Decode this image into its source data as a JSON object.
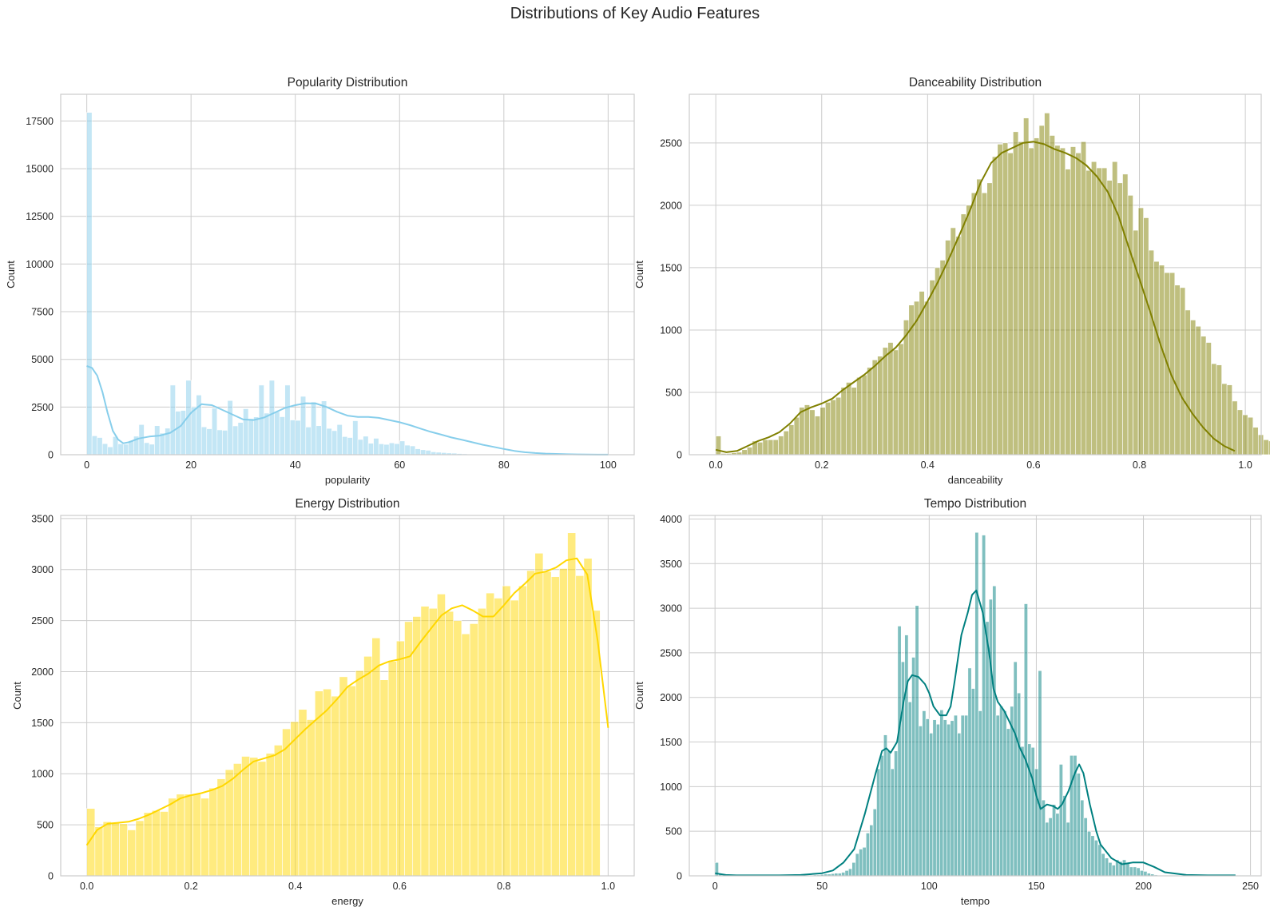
{
  "figure": {
    "suptitle": "Distributions of Key Audio Features"
  },
  "chart_data": [
    {
      "type": "histogram",
      "title": "Popularity Distribution",
      "xlabel": "popularity",
      "ylabel": "Count",
      "color": "#87ceeb",
      "kde": true,
      "grid": true,
      "xlim": [
        -5,
        105
      ],
      "ylim": [
        0,
        18900
      ],
      "xticks": [
        0,
        20,
        40,
        60,
        80,
        100
      ],
      "yticks": [
        0,
        2500,
        5000,
        7500,
        10000,
        12500,
        15000,
        17500
      ],
      "bin_width": 1.0,
      "bin_start": 0,
      "counts": [
        17950,
        990,
        900,
        580,
        410,
        950,
        570,
        550,
        730,
        970,
        1580,
        630,
        550,
        1520,
        1130,
        1390,
        3650,
        2280,
        2320,
        3900,
        2500,
        3130,
        1460,
        1360,
        2440,
        1300,
        1280,
        2840,
        1510,
        1690,
        2410,
        1890,
        1980,
        3650,
        2180,
        3900,
        2250,
        1990,
        3650,
        1820,
        1800,
        3060,
        1450,
        2770,
        1520,
        2820,
        1380,
        1260,
        1580,
        950,
        900,
        1780,
        800,
        970,
        600,
        860,
        570,
        540,
        620,
        580,
        720,
        500,
        460,
        310,
        260,
        230,
        150,
        130,
        110,
        90,
        80,
        60,
        45,
        35,
        25,
        20,
        15,
        12,
        10,
        8,
        6,
        5,
        4,
        3,
        2,
        2,
        1,
        1,
        1,
        1,
        1,
        1,
        1,
        1,
        1,
        1,
        1,
        1,
        1,
        1
      ],
      "kde_line": {
        "x": [
          0,
          1,
          2,
          3,
          4,
          5,
          6,
          7,
          8,
          10,
          12,
          14,
          16,
          18,
          20,
          22,
          24,
          26,
          28,
          30,
          32,
          34,
          36,
          38,
          40,
          42,
          44,
          46,
          48,
          50,
          52,
          54,
          56,
          58,
          60,
          62,
          64,
          66,
          68,
          70,
          72,
          74,
          76,
          78,
          80,
          82,
          84,
          86,
          88,
          90,
          92,
          94,
          96,
          98,
          100
        ],
        "y": [
          4650,
          4550,
          4150,
          3300,
          2200,
          1250,
          800,
          600,
          650,
          850,
          950,
          1000,
          1150,
          1500,
          2200,
          2650,
          2600,
          2350,
          2100,
          1850,
          1820,
          1950,
          2200,
          2450,
          2600,
          2700,
          2680,
          2500,
          2250,
          2050,
          1980,
          1980,
          1930,
          1820,
          1700,
          1550,
          1370,
          1200,
          1050,
          900,
          780,
          650,
          520,
          410,
          300,
          200,
          130,
          90,
          60,
          40,
          25,
          15,
          10,
          6,
          3
        ]
      }
    },
    {
      "type": "histogram",
      "title": "Danceability Distribution",
      "xlabel": "danceability",
      "ylabel": "Count",
      "color": "#808000",
      "kde": true,
      "grid": true,
      "xlim": [
        -0.05,
        1.03
      ],
      "ylim": [
        0,
        2890
      ],
      "xticks": [
        0.0,
        0.2,
        0.4,
        0.6,
        0.8,
        1.0
      ],
      "xtick_labels": [
        "0.0",
        "0.2",
        "0.4",
        "0.6",
        "0.8",
        "1.0"
      ],
      "yticks": [
        0,
        500,
        1000,
        1500,
        2000,
        2500
      ],
      "bin_width": 0.00985,
      "bin_start": 0.0,
      "counts": [
        150,
        10,
        10,
        15,
        20,
        40,
        60,
        110,
        100,
        120,
        120,
        120,
        150,
        190,
        240,
        300,
        380,
        400,
        360,
        310,
        380,
        420,
        440,
        460,
        540,
        580,
        540,
        620,
        640,
        700,
        760,
        790,
        860,
        900,
        840,
        890,
        1080,
        1200,
        1230,
        1310,
        1230,
        1400,
        1500,
        1560,
        1720,
        1820,
        1750,
        1930,
        2000,
        2100,
        2210,
        2100,
        2180,
        2390,
        2490,
        2500,
        2420,
        2590,
        2510,
        2700,
        2460,
        2540,
        2640,
        2740,
        2560,
        2480,
        2460,
        2290,
        2470,
        2420,
        2510,
        2280,
        2350,
        2300,
        2300,
        2200,
        2350,
        2180,
        2250,
        2080,
        1800,
        1980,
        1900,
        1640,
        1550,
        1520,
        1460,
        1460,
        1360,
        1340,
        1160,
        1080,
        1030,
        950,
        900,
        730,
        720,
        570,
        560,
        430,
        360,
        320,
        300,
        220,
        160,
        120,
        110,
        80,
        60,
        40
      ],
      "kde_line": {
        "x": [
          0.0,
          0.02,
          0.04,
          0.06,
          0.08,
          0.1,
          0.12,
          0.14,
          0.16,
          0.18,
          0.2,
          0.22,
          0.24,
          0.26,
          0.28,
          0.3,
          0.32,
          0.34,
          0.36,
          0.38,
          0.4,
          0.42,
          0.44,
          0.46,
          0.48,
          0.5,
          0.52,
          0.54,
          0.56,
          0.58,
          0.6,
          0.62,
          0.64,
          0.66,
          0.68,
          0.7,
          0.72,
          0.74,
          0.76,
          0.78,
          0.8,
          0.82,
          0.84,
          0.86,
          0.88,
          0.9,
          0.92,
          0.94,
          0.96,
          0.98
        ],
        "y": [
          40,
          20,
          30,
          70,
          110,
          140,
          180,
          250,
          340,
          380,
          410,
          450,
          520,
          580,
          640,
          710,
          790,
          860,
          960,
          1080,
          1230,
          1390,
          1570,
          1760,
          1960,
          2180,
          2340,
          2420,
          2460,
          2500,
          2510,
          2490,
          2450,
          2420,
          2380,
          2320,
          2230,
          2110,
          1920,
          1660,
          1410,
          1150,
          880,
          640,
          460,
          330,
          220,
          130,
          70,
          30
        ]
      }
    },
    {
      "type": "histogram",
      "title": "Energy Distribution",
      "xlabel": "energy",
      "ylabel": "Count",
      "color": "#ffd700",
      "kde": true,
      "grid": true,
      "xlim": [
        -0.05,
        1.05
      ],
      "ylim": [
        0,
        3530
      ],
      "xticks": [
        0.0,
        0.2,
        0.4,
        0.6,
        0.8,
        1.0
      ],
      "xtick_labels": [
        "0.0",
        "0.2",
        "0.4",
        "0.6",
        "0.8",
        "1.0"
      ],
      "yticks": [
        0,
        500,
        1000,
        1500,
        2000,
        2500,
        3000,
        3500
      ],
      "bin_width": 0.01563,
      "bin_start": 0.0,
      "counts": [
        660,
        480,
        530,
        520,
        510,
        450,
        540,
        620,
        640,
        630,
        760,
        800,
        800,
        800,
        760,
        860,
        950,
        1040,
        1100,
        1170,
        1160,
        1120,
        1200,
        1280,
        1440,
        1510,
        1630,
        1530,
        1810,
        1830,
        1760,
        1950,
        1860,
        2010,
        2150,
        2330,
        1920,
        2100,
        2300,
        2490,
        2540,
        2640,
        2620,
        2760,
        2590,
        2500,
        2370,
        2470,
        2620,
        2770,
        2720,
        2840,
        2700,
        2840,
        2990,
        3160,
        2980,
        2930,
        3010,
        3360,
        2940,
        3110,
        2600
      ],
      "kde_line": {
        "x": [
          0.0,
          0.02,
          0.04,
          0.06,
          0.08,
          0.1,
          0.12,
          0.14,
          0.16,
          0.18,
          0.2,
          0.22,
          0.24,
          0.26,
          0.28,
          0.3,
          0.32,
          0.34,
          0.36,
          0.38,
          0.4,
          0.42,
          0.44,
          0.46,
          0.48,
          0.5,
          0.52,
          0.54,
          0.56,
          0.58,
          0.6,
          0.62,
          0.64,
          0.66,
          0.68,
          0.7,
          0.72,
          0.74,
          0.76,
          0.78,
          0.8,
          0.82,
          0.84,
          0.86,
          0.88,
          0.9,
          0.92,
          0.94,
          0.96,
          0.98,
          1.0
        ],
        "y": [
          300,
          450,
          510,
          520,
          530,
          560,
          600,
          650,
          700,
          760,
          790,
          810,
          840,
          880,
          950,
          1040,
          1120,
          1150,
          1180,
          1240,
          1340,
          1440,
          1530,
          1620,
          1730,
          1850,
          1920,
          1980,
          2060,
          2100,
          2120,
          2150,
          2290,
          2420,
          2550,
          2620,
          2650,
          2600,
          2540,
          2540,
          2650,
          2770,
          2860,
          2960,
          2980,
          3020,
          3090,
          3110,
          2950,
          2300,
          1450
        ]
      }
    },
    {
      "type": "histogram",
      "title": "Tempo Distribution",
      "xlabel": "tempo",
      "ylabel": "Count",
      "color": "#008080",
      "kde": true,
      "grid": true,
      "xlim": [
        -12,
        255
      ],
      "ylim": [
        0,
        4040
      ],
      "xticks": [
        0,
        50,
        100,
        150,
        200,
        250
      ],
      "yticks": [
        0,
        500,
        1000,
        1500,
        2000,
        2500,
        3000,
        3500,
        4000
      ],
      "bin_width": 1.64,
      "bin_start": 0,
      "counts": [
        150,
        20,
        10,
        5,
        5,
        5,
        5,
        5,
        5,
        5,
        5,
        5,
        5,
        5,
        5,
        5,
        5,
        5,
        5,
        5,
        5,
        5,
        5,
        5,
        5,
        5,
        5,
        5,
        10,
        10,
        15,
        20,
        20,
        25,
        30,
        30,
        40,
        60,
        80,
        150,
        250,
        300,
        320,
        480,
        570,
        750,
        1200,
        1350,
        1580,
        1400,
        1200,
        1400,
        2800,
        2400,
        2700,
        1950,
        2450,
        3030,
        1680,
        1850,
        1760,
        1600,
        1750,
        1700,
        1860,
        1750,
        1700,
        1740,
        1800,
        1600,
        1800,
        1800,
        2330,
        2100,
        3850,
        1850,
        3820,
        2850,
        3100,
        3250,
        1800,
        1900,
        1850,
        1650,
        1900,
        2400,
        2050,
        1450,
        3050,
        1480,
        1440,
        1200,
        2300,
        850,
        600,
        650,
        800,
        700,
        1250,
        900,
        600,
        1350,
        1350,
        1150,
        850,
        650,
        500,
        450,
        400,
        350,
        250,
        200,
        150,
        120,
        180,
        160,
        180,
        150,
        100,
        100,
        90,
        60,
        50,
        30,
        20,
        10,
        5,
        5,
        5,
        5,
        5,
        5,
        5,
        5,
        5,
        5,
        5,
        5,
        5,
        5,
        5,
        5,
        5,
        5,
        5,
        5,
        5,
        5,
        5,
        5,
        5,
        5,
        5,
        5
      ],
      "kde_line": {
        "x": [
          0,
          5,
          10,
          20,
          30,
          40,
          50,
          55,
          60,
          65,
          70,
          75,
          78,
          80,
          82,
          85,
          88,
          90,
          92,
          95,
          98,
          100,
          102,
          105,
          108,
          110,
          112,
          115,
          118,
          120,
          122,
          125,
          128,
          130,
          132,
          135,
          138,
          140,
          142,
          145,
          148,
          150,
          152,
          155,
          158,
          160,
          162,
          165,
          168,
          170,
          172,
          175,
          178,
          180,
          185,
          190,
          195,
          200,
          205,
          210,
          220,
          230,
          240,
          243
        ],
        "y": [
          30,
          10,
          5,
          5,
          5,
          10,
          30,
          60,
          150,
          300,
          700,
          1150,
          1400,
          1430,
          1380,
          1500,
          1950,
          2180,
          2250,
          2230,
          2150,
          2050,
          1900,
          1800,
          1800,
          1900,
          2200,
          2700,
          2950,
          3150,
          3200,
          2950,
          2500,
          2100,
          1950,
          1850,
          1700,
          1600,
          1450,
          1300,
          1100,
          900,
          750,
          800,
          780,
          750,
          800,
          950,
          1150,
          1250,
          1150,
          800,
          500,
          350,
          200,
          130,
          150,
          150,
          100,
          40,
          10,
          5,
          5,
          5
        ]
      }
    }
  ]
}
